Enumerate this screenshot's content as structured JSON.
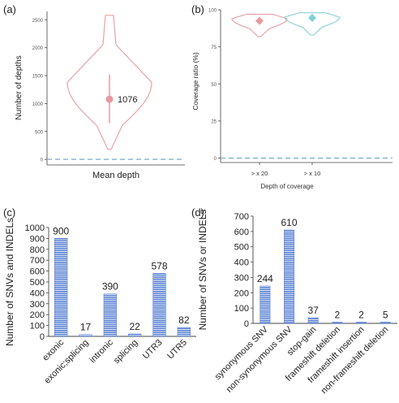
{
  "colors": {
    "violin_pink": "#e8a3a8",
    "violin_cyan": "#8fd3d9",
    "point_pink": "#e89aa0",
    "point_cyan": "#7fd0d6",
    "dashed": "#8fb7d6",
    "bar_blue": "#4f79d0",
    "axis": "#444444"
  },
  "panel_labels": [
    "(a)",
    "(b)",
    "(c)",
    "(d)"
  ],
  "chart_data": [
    {
      "panel": "(a)",
      "type": "violin",
      "xlabel": "Mean depth",
      "ylabel": "Number of depths",
      "ylim": [
        -100,
        2650
      ],
      "y_ticks": [
        0,
        500,
        1000,
        1500,
        2000,
        2500
      ],
      "violin_range": [
        180,
        2580
      ],
      "median": 1076,
      "median_label": "1076",
      "whisker": [
        650,
        1520
      ],
      "reference_line": 0
    },
    {
      "panel": "(b)",
      "type": "violin",
      "xlabel": "Depth of coverage",
      "ylabel": "Coverage ratio (%)",
      "ylim": [
        -3,
        100
      ],
      "y_ticks": [
        0,
        25,
        50,
        75,
        100
      ],
      "categories": [
        "> x 20",
        "> x 10"
      ],
      "groups": [
        {
          "name": "> x 20",
          "range": [
            82,
            97
          ],
          "median": 92.5,
          "whisker": [
            90,
            95
          ],
          "color": "pink"
        },
        {
          "name": "> x 10",
          "range": [
            83,
            98
          ],
          "median": 94.5,
          "whisker": [
            92,
            97
          ],
          "color": "cyan"
        }
      ],
      "reference_line": 0
    },
    {
      "panel": "(c)",
      "type": "bar",
      "xlabel": "",
      "ylabel": "Number of SNVs and INDELs",
      "ylim": [
        0,
        1000
      ],
      "y_ticks": [
        0,
        100,
        200,
        300,
        400,
        500,
        600,
        700,
        800,
        900,
        1000
      ],
      "categories": [
        "exonic",
        "exonic;splicing",
        "intronic",
        "splicing",
        "UTR3",
        "UTR5"
      ],
      "values": [
        900,
        17,
        390,
        22,
        578,
        82
      ],
      "data_labels": [
        "900",
        "17",
        "390",
        "22",
        "578",
        "82"
      ]
    },
    {
      "panel": "(d)",
      "type": "bar",
      "xlabel": "",
      "ylabel": "Number of SNVs or INDELs",
      "ylim": [
        0,
        700
      ],
      "y_ticks": [
        0,
        100,
        200,
        300,
        400,
        500,
        600,
        700
      ],
      "categories": [
        "synonymous SNV",
        "non-synonymous SNV",
        "stop-gain",
        "frameshift deletion",
        "frameshift insertion",
        "non-frameshift deletion"
      ],
      "values": [
        244,
        610,
        37,
        2,
        2,
        5
      ],
      "data_labels": [
        "244",
        "610",
        "37",
        "2",
        "2",
        "5"
      ]
    }
  ]
}
